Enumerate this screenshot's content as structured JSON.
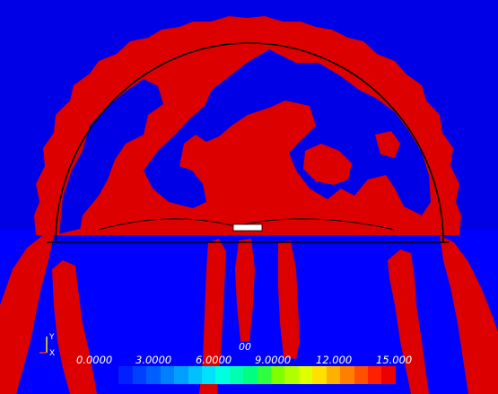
{
  "colorbar": {
    "title": "00",
    "labels": [
      "0.0000",
      "3.0000",
      "6.0000",
      "9.0000",
      "12.000",
      "15.000"
    ],
    "colors": [
      "#0000ff",
      "#0020ff",
      "#0040ff",
      "#0060ff",
      "#0080ff",
      "#00a0ff",
      "#00c0ff",
      "#00e0ff",
      "#00ffe0",
      "#00ffb0",
      "#00ff80",
      "#30ff40",
      "#80ff00",
      "#b0ff00",
      "#e0ff00",
      "#ffe000",
      "#ffb000",
      "#ff8000",
      "#ff5000",
      "#ff2000",
      "#ee0000"
    ]
  },
  "axis": {
    "x_label": "X",
    "y_label": "Y"
  },
  "colors": {
    "background_blue": "#0000e6",
    "contour_red": "#dd0000",
    "outline_black": "#000000",
    "label_white": "#ffffff"
  }
}
